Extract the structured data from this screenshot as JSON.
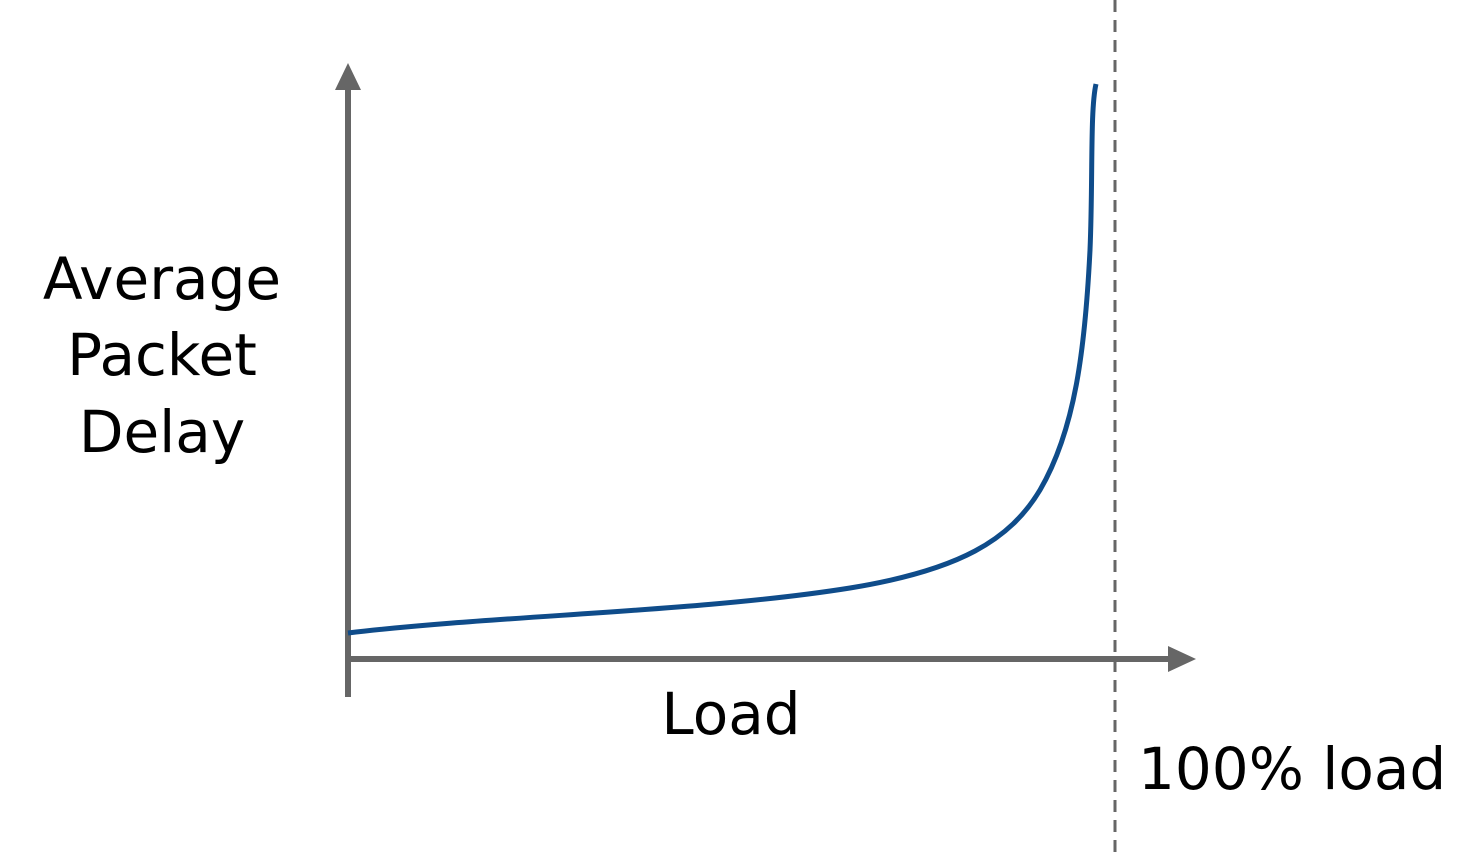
{
  "axes": {
    "y_label": [
      "Average",
      "Packet",
      "Delay"
    ],
    "x_label": "Load"
  },
  "annotation": "100% load"
}
